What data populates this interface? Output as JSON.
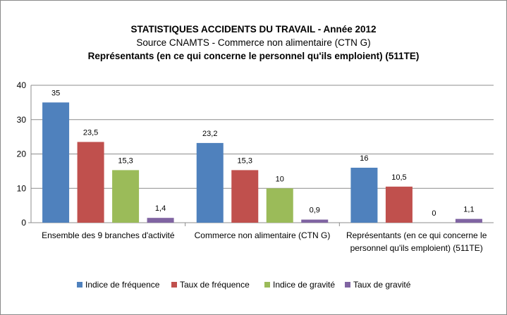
{
  "chart_data": {
    "type": "bar",
    "title": "STATISTIQUES ACCIDENTS DU TRAVAIL - Année 2012",
    "subtitle": "Source CNAMTS - Commerce non alimentaire (CTN G)",
    "subtitle2": "Représentants (en ce qui concerne le personnel qu'ils emploient) (511TE)",
    "categories": [
      [
        "Ensemble des 9 branches d'activité"
      ],
      [
        "Commerce non alimentaire (CTN G)"
      ],
      [
        "Représentants (en ce qui concerne le",
        "personnel qu'ils emploient) (511TE)"
      ]
    ],
    "series": [
      {
        "name": "Indice de fréquence",
        "color": "#4f81bd",
        "values": [
          35,
          23.2,
          16
        ],
        "labels": [
          "35",
          "23,2",
          "16"
        ]
      },
      {
        "name": "Taux de fréquence",
        "color": "#c0504d",
        "values": [
          23.5,
          15.3,
          10.5
        ],
        "labels": [
          "23,5",
          "15,3",
          "10,5"
        ]
      },
      {
        "name": "Indice de gravité",
        "color": "#9bbb59",
        "values": [
          15.3,
          10,
          0
        ],
        "labels": [
          "15,3",
          "10",
          "0"
        ]
      },
      {
        "name": "Taux de gravité",
        "color": "#8064a2",
        "values": [
          1.4,
          0.9,
          1.1
        ],
        "labels": [
          "1,4",
          "0,9",
          "1,1"
        ]
      }
    ],
    "yticks": [
      "0",
      "10",
      "20",
      "30",
      "40"
    ],
    "ylim": [
      0,
      40
    ],
    "grid": true,
    "legend_position": "bottom"
  }
}
